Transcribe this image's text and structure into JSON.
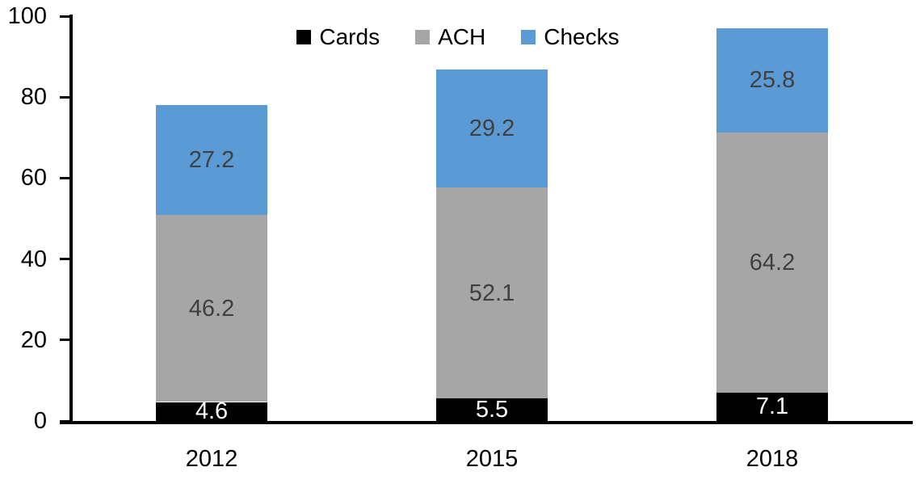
{
  "chart_data": {
    "type": "bar",
    "stacked": true,
    "title": "",
    "categories": [
      "2012",
      "2015",
      "2018"
    ],
    "series": [
      {
        "name": "Cards",
        "color": "#000000",
        "label_color": "#FFFFFF",
        "values": [
          4.6,
          5.5,
          7.1
        ]
      },
      {
        "name": "ACH",
        "color": "#A6A6A6",
        "label_color": "#404040",
        "values": [
          46.2,
          52.1,
          64.2
        ]
      },
      {
        "name": "Checks",
        "color": "#5B9BD5",
        "label_color": "#404040",
        "values": [
          27.2,
          29.2,
          25.8
        ]
      }
    ],
    "ylim": [
      0,
      100
    ],
    "y_ticks": [
      0,
      20,
      40,
      60,
      80,
      100
    ],
    "grid": false,
    "legend_position": "top",
    "axis_color": "#000000",
    "background": "#FFFFFF"
  }
}
